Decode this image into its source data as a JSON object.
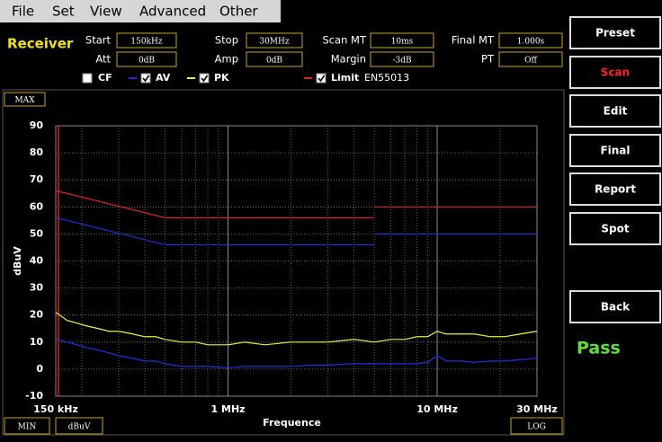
{
  "menu": [
    "File",
    "Set",
    "View",
    "Advanced",
    "Other"
  ],
  "panel_title": "Receiver",
  "fields": [
    {
      "label": "Start",
      "value": "150kHz"
    },
    {
      "label": "Stop",
      "value": "30MHz"
    },
    {
      "label": "Scan MT",
      "value": "10ms"
    },
    {
      "label": "Final MT",
      "value": "1.000s"
    },
    {
      "label": "Att",
      "value": "0dB"
    },
    {
      "label": "Amp",
      "value": "0dB"
    },
    {
      "label": "Margin",
      "value": "-3dB"
    },
    {
      "label": "PT",
      "value": "Off"
    }
  ],
  "cf_label": "CF",
  "limit_standard": "EN55013",
  "max_box": "MAX",
  "min_box": "MIN",
  "unit_box": "dBuV",
  "scale_box": "LOG",
  "buttons": [
    "Preset",
    "Scan",
    "Edit",
    "Final",
    "Report",
    "Spot",
    "Back"
  ],
  "status": "Pass",
  "chart_data": {
    "type": "line",
    "x_label": "Frequence",
    "y_label": "dBuV",
    "x_scale": "log",
    "grid": true,
    "xlim": [
      0.15,
      30
    ],
    "ylim": [
      -10,
      90
    ],
    "yticks": [
      -10,
      0,
      10,
      20,
      30,
      40,
      50,
      60,
      70,
      80,
      90
    ],
    "xticks": [
      {
        "value": 0.15,
        "label": "150 kHz"
      },
      {
        "value": 1,
        "label": "1 MHz"
      },
      {
        "value": 10,
        "label": "10 MHz"
      },
      {
        "value": 30,
        "label": "30 MHz"
      }
    ],
    "xgrid_minor": [
      0.2,
      0.3,
      0.4,
      0.5,
      0.6,
      0.7,
      0.8,
      0.9,
      2,
      3,
      4,
      5,
      6,
      7,
      8,
      9,
      20
    ],
    "series": [
      {
        "name": "Limit",
        "color": "#e02020",
        "x": [
          0.15,
          0.5,
          5,
          5,
          5,
          30
        ],
        "values": [
          66,
          56,
          56,
          null,
          60,
          60
        ]
      },
      {
        "color": "#2030e0",
        "x": [
          0.15,
          0.5,
          5,
          5,
          5,
          30
        ],
        "values": [
          56,
          46,
          46,
          null,
          50,
          50
        ]
      },
      {
        "name": "PK",
        "color": "#f0f040",
        "x": [
          0.15,
          0.17,
          0.19,
          0.21,
          0.24,
          0.27,
          0.3,
          0.35,
          0.4,
          0.45,
          0.5,
          0.6,
          0.7,
          0.8,
          1,
          1.2,
          1.5,
          2,
          2.5,
          3,
          4,
          5,
          6,
          7,
          8,
          9,
          10,
          11,
          13,
          15,
          18,
          21,
          25,
          30
        ],
        "values": [
          21,
          18,
          17,
          16,
          15,
          14,
          14,
          13,
          12,
          12,
          11,
          10,
          10,
          9,
          9,
          10,
          9,
          10,
          10,
          10,
          11,
          10,
          11,
          11,
          12,
          12,
          14,
          13,
          13,
          13,
          12,
          12,
          13,
          14
        ]
      },
      {
        "name": "AV",
        "color": "#2030e0",
        "x": [
          0.15,
          0.17,
          0.19,
          0.21,
          0.24,
          0.27,
          0.3,
          0.35,
          0.4,
          0.45,
          0.5,
          0.6,
          0.7,
          0.8,
          1,
          1.2,
          1.5,
          2,
          2.5,
          3,
          4,
          5,
          6,
          7,
          8,
          9,
          10,
          11,
          13,
          15,
          18,
          21,
          25,
          30
        ],
        "values": [
          11,
          10,
          9,
          8,
          7,
          6,
          5,
          4,
          3,
          3,
          2,
          1,
          1,
          1,
          0.5,
          1,
          1,
          1,
          1.5,
          1.5,
          2,
          2,
          2,
          2,
          2,
          2.5,
          5,
          3,
          3,
          2.5,
          3,
          3,
          3.5,
          4
        ]
      }
    ]
  }
}
